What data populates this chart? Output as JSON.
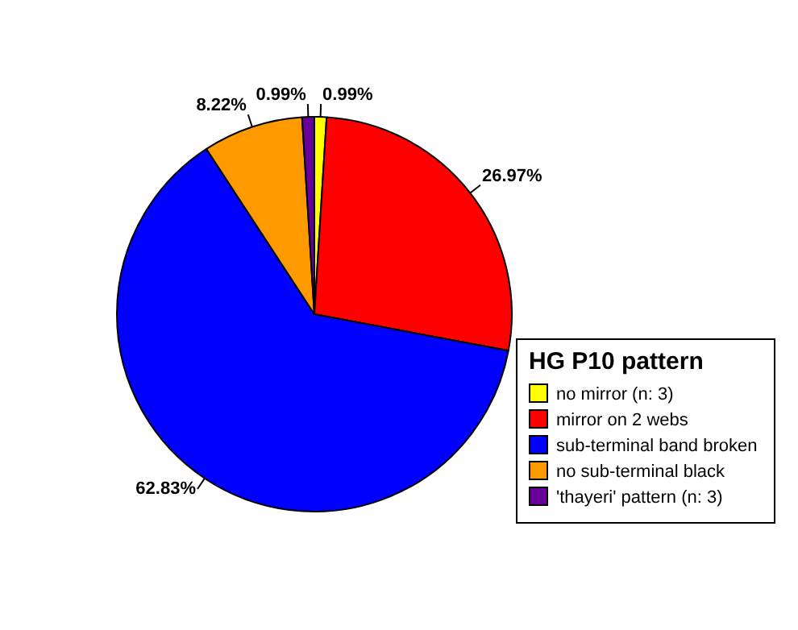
{
  "chart_data": {
    "type": "pie",
    "legend_title": "HG P10 pattern",
    "categories": [
      "no mirror (n: 3)",
      "mirror on 2 webs",
      "sub-terminal band broken",
      "no sub-terminal black",
      "'thayeri' pattern (n: 3)"
    ],
    "values": [
      0.99,
      26.97,
      62.83,
      8.22,
      0.99
    ],
    "colors": [
      "#ffff00",
      "#ff0000",
      "#0000ff",
      "#ff9900",
      "#660099"
    ],
    "value_labels": [
      "0.99%",
      "26.97%",
      "62.83%",
      "8.22%",
      "0.99%"
    ],
    "legend": "bottom right"
  }
}
